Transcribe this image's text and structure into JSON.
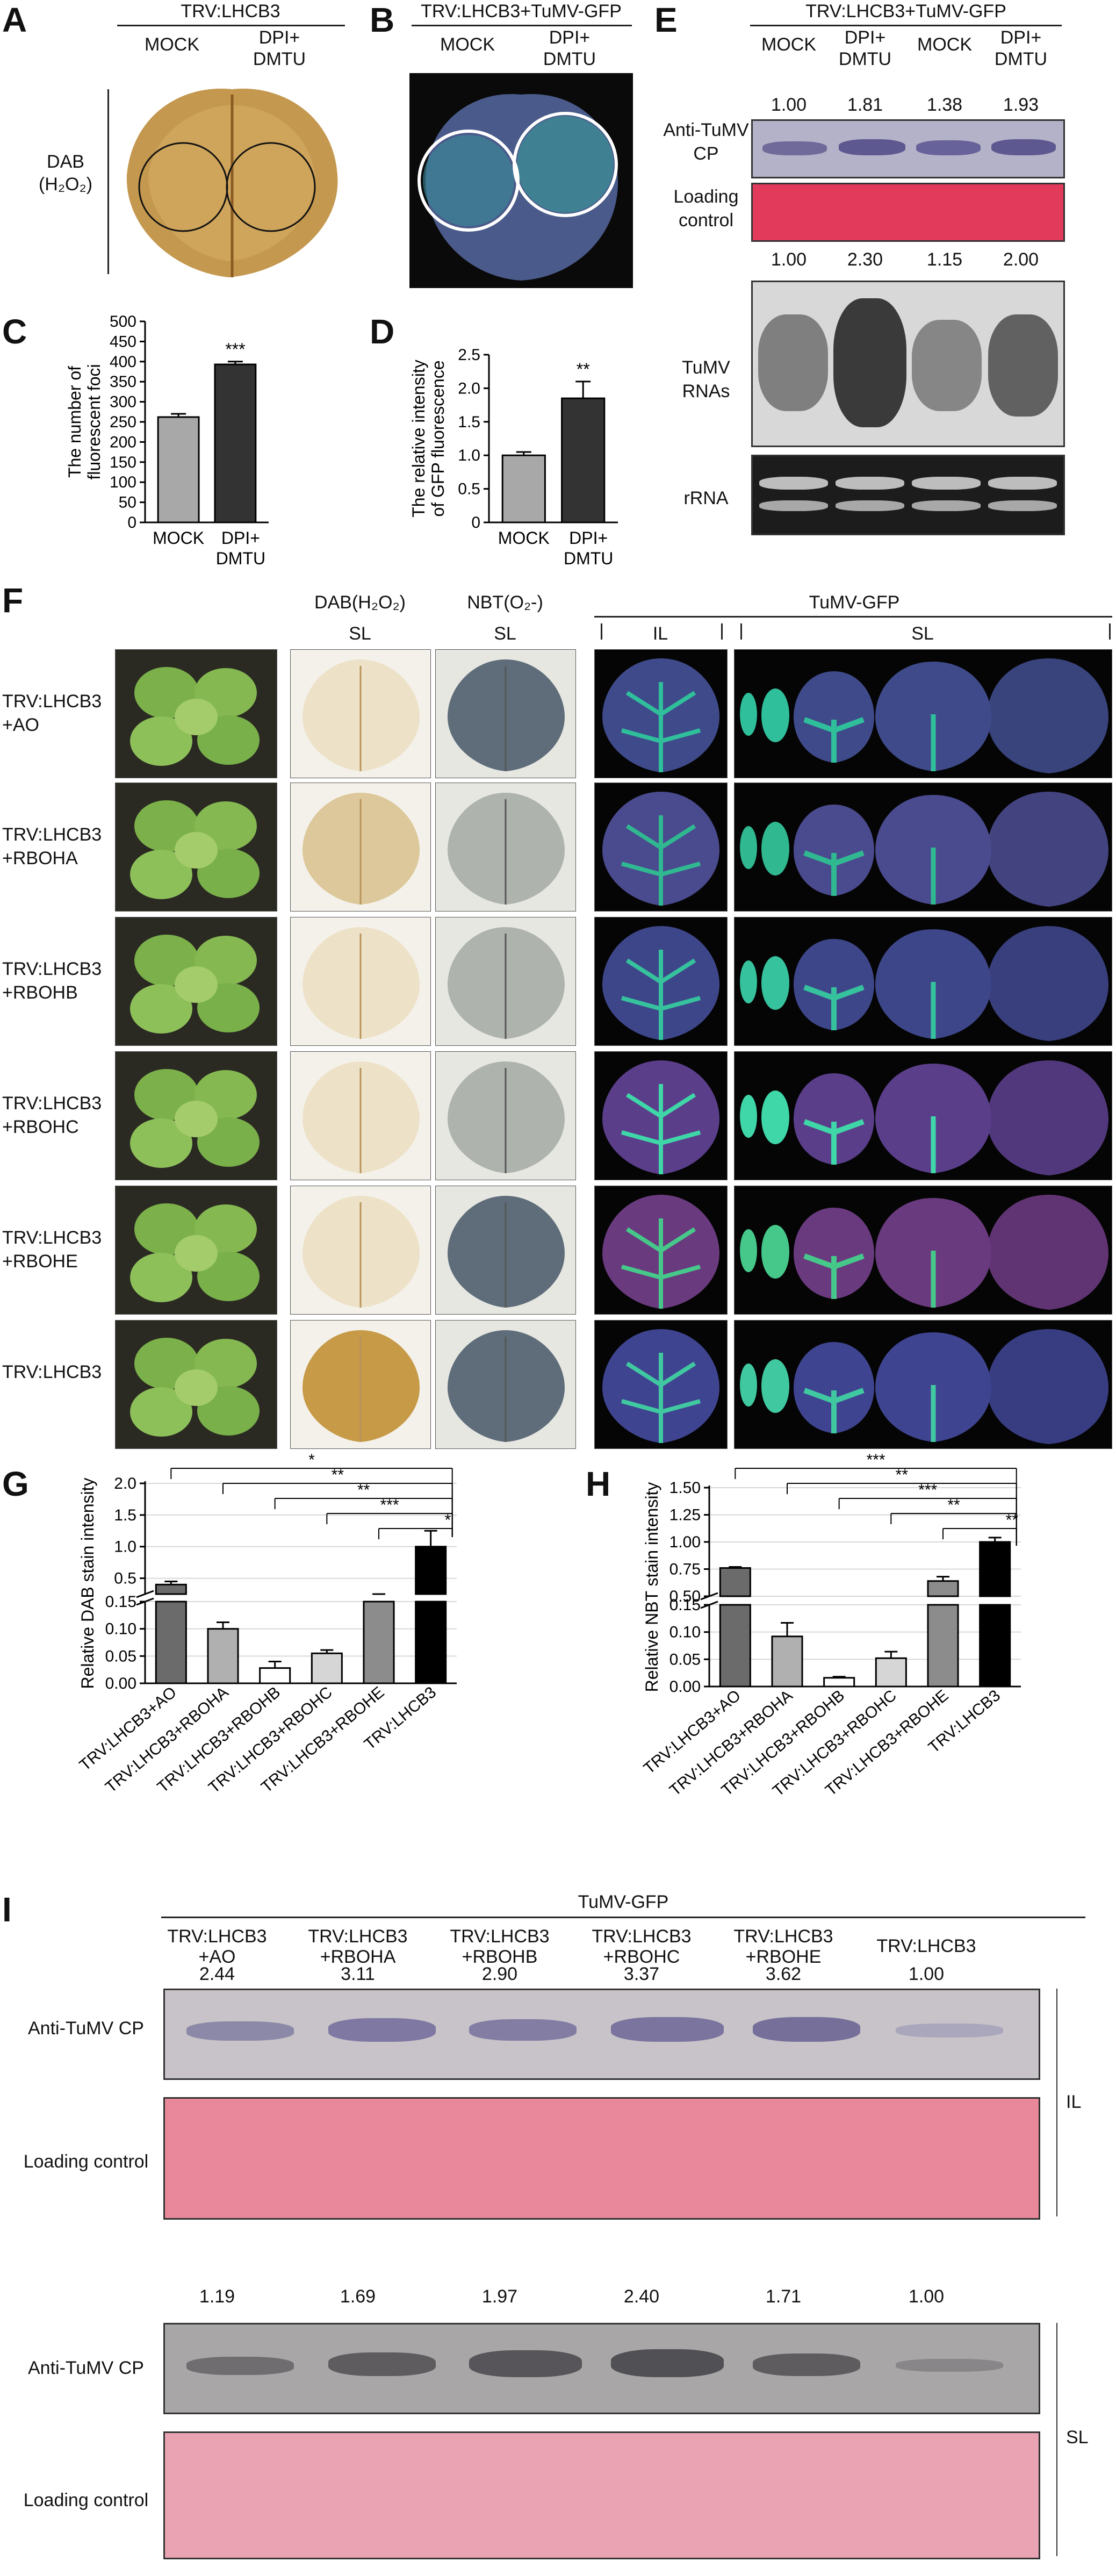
{
  "panelA": {
    "letter": "A",
    "header": "TRV:LHCB3",
    "cols": [
      "MOCK",
      "DPI+",
      "DMTU"
    ],
    "side_label_1": "DAB",
    "side_label_2": "(H₂O₂)"
  },
  "panelB": {
    "letter": "B",
    "header": "TRV:LHCB3+TuMV-GFP",
    "cols": [
      "MOCK",
      "DPI+",
      "DMTU"
    ]
  },
  "panelC": {
    "letter": "C",
    "ylabel1": "The number of",
    "ylabel2": "fluorescent foci",
    "chart_data": {
      "type": "bar",
      "categories": [
        "MOCK",
        "DPI+ DMTU"
      ],
      "values": [
        262,
        393
      ],
      "errors": [
        8,
        7
      ],
      "ylim": [
        0,
        500
      ],
      "yticks": [
        "0",
        "50",
        "100",
        "150",
        "200",
        "250",
        "300",
        "350",
        "400",
        "450",
        "500"
      ],
      "sig": "***",
      "xlabels": [
        "MOCK",
        "DPI+",
        "DMTU"
      ],
      "colors": [
        "#a8a8a8",
        "#333333"
      ]
    }
  },
  "panelD": {
    "letter": "D",
    "ylabel1": "The relative intensity",
    "ylabel2": "of GFP fluorescence",
    "chart_data": {
      "type": "bar",
      "categories": [
        "MOCK",
        "DPI+ DMTU"
      ],
      "values": [
        1.0,
        1.85
      ],
      "errors": [
        0.05,
        0.25
      ],
      "ylim": [
        0,
        2.5
      ],
      "yticks": [
        "0",
        "0.5",
        "1.0",
        "1.5",
        "2.0",
        "2.5"
      ],
      "sig": "**",
      "xlabels": [
        "MOCK",
        "DPI+",
        "DMTU"
      ],
      "colors": [
        "#a8a8a8",
        "#333333"
      ]
    }
  },
  "panelE": {
    "letter": "E",
    "header": "TRV:LHCB3+TuMV-GFP",
    "cols": [
      "MOCK",
      "DPI+",
      "DMTU",
      "MOCK",
      "DPI+",
      "DMTU"
    ],
    "row1_values": [
      "1.00",
      "1.81",
      "1.38",
      "1.93"
    ],
    "row2_values": [
      "1.00",
      "2.30",
      "1.15",
      "2.00"
    ],
    "labels": {
      "cp1": "Anti-TuMV",
      "cp2": "CP",
      "lc1": "Loading",
      "lc2": "control",
      "rna1": "TuMV",
      "rna2": "RNAs",
      "rrna": "rRNA"
    }
  },
  "panelF": {
    "letter": "F",
    "col_headers": {
      "dab": "DAB(H₂O₂)",
      "nbt": "NBT(O₂-)",
      "sl1": "SL",
      "sl2": "SL",
      "gfp": "TuMV-GFP",
      "il": "IL",
      "sl3": "SL"
    },
    "rows": [
      {
        "l1": "TRV:LHCB3",
        "l2": "+AO"
      },
      {
        "l1": "TRV:LHCB3",
        "l2": "+RBOHA"
      },
      {
        "l1": "TRV:LHCB3",
        "l2": "+RBOHB"
      },
      {
        "l1": "TRV:LHCB3",
        "l2": "+RBOHC"
      },
      {
        "l1": "TRV:LHCB3",
        "l2": "+RBOHE"
      },
      {
        "l1": "TRV:LHCB3",
        "l2": ""
      }
    ]
  },
  "panelG": {
    "letter": "G",
    "ylabel": "Relative DAB stain intensity",
    "chart_data": {
      "type": "bar",
      "categories": [
        "TRV:LHCB3+AO",
        "TRV:LHCB3+RBOHA",
        "TRV:LHCB3+RBOHB",
        "TRV:LHCB3+RBOHC",
        "TRV:LHCB3+RBOHE",
        "TRV:LHCB3"
      ],
      "values": [
        0.4,
        0.1,
        0.028,
        0.055,
        0.22,
        1.0
      ],
      "errors": [
        0.05,
        0.012,
        0.012,
        0.006,
        0.03,
        0.25
      ],
      "upper_ticks": [
        "2.0",
        "1.5",
        "1.0",
        "0.5"
      ],
      "lower_ticks": [
        "0.15",
        "0.10",
        "0.05",
        "0.00"
      ],
      "sig": [
        "*",
        "**",
        "**",
        "***",
        "*"
      ],
      "colors": [
        "#6b6b6b",
        "#b0b0b0",
        "#ffffff",
        "#d6d6d6",
        "#8c8c8c",
        "#000000"
      ]
    }
  },
  "panelH": {
    "letter": "H",
    "ylabel": "Relative NBT stain intensity",
    "chart_data": {
      "type": "bar",
      "categories": [
        "TRV:LHCB3+AO",
        "TRV:LHCB3+RBOHA",
        "TRV:LHCB3+RBOHB",
        "TRV:LHCB3+RBOHC",
        "TRV:LHCB3+RBOHE",
        "TRV:LHCB3"
      ],
      "values": [
        0.76,
        0.092,
        0.016,
        0.052,
        0.64,
        1.0
      ],
      "errors": [
        0.01,
        0.025,
        0.002,
        0.012,
        0.04,
        0.04
      ],
      "upper_ticks": [
        "1.50",
        "1.25",
        "1.00",
        "0.75",
        "0.50"
      ],
      "lower_ticks": [
        "0.15",
        "0.10",
        "0.05",
        "0.00"
      ],
      "sig": [
        "***",
        "**",
        "***",
        "**",
        "**"
      ],
      "colors": [
        "#6b6b6b",
        "#b0b0b0",
        "#ffffff",
        "#d6d6d6",
        "#8c8c8c",
        "#000000"
      ]
    }
  },
  "panelI": {
    "letter": "I",
    "header": "TuMV-GFP",
    "cols": [
      {
        "l1": "TRV:LHCB3",
        "l2": "+AO"
      },
      {
        "l1": "TRV:LHCB3",
        "l2": "+RBOHA"
      },
      {
        "l1": "TRV:LHCB3",
        "l2": "+RBOHB"
      },
      {
        "l1": "TRV:LHCB3",
        "l2": "+RBOHC"
      },
      {
        "l1": "TRV:LHCB3",
        "l2": "+RBOHE"
      },
      {
        "l1": "TRV:LHCB3",
        "l2": ""
      }
    ],
    "il_values": [
      "2.44",
      "3.11",
      "2.90",
      "3.37",
      "3.62",
      "1.00"
    ],
    "sl_values": [
      "1.19",
      "1.69",
      "1.97",
      "2.40",
      "1.71",
      "1.00"
    ],
    "labels": {
      "cp1": "Anti-TuMV CP",
      "lc1": "Loading control",
      "cp2": "Anti-TuMV CP",
      "lc2": "Loading control",
      "il": "IL",
      "sl": "SL"
    }
  }
}
